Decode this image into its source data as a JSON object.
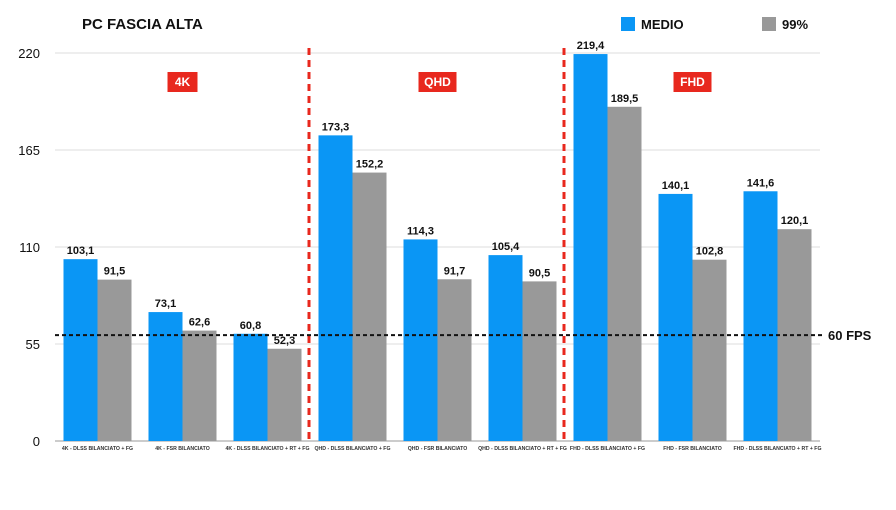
{
  "chart_data": {
    "type": "bar",
    "title": "PC FASCIA ALTA",
    "ylim": [
      0,
      220
    ],
    "yticks": [
      0,
      55,
      110,
      165,
      220
    ],
    "grid": true,
    "legend_placement": "top-right",
    "categories": [
      "4K - DLSS BILANCIATO + FG",
      "4K - FSR BILANCIATO",
      "4K - DLSS BILANCIATO + RT + FG",
      "QHD - DLSS BILANCIATO + FG",
      "QHD - FSR BILANCIATO",
      "QHD - DLSS BILANCIATO + RT + FG",
      "FHD - DLSS BILANCIATO + FG",
      "FHD - FSR BILANCIATO",
      "FHD - DLSS BILANCIATO + RT + FG"
    ],
    "series": [
      {
        "name": "MEDIO",
        "color": "#0a96f5",
        "values": [
          103.1,
          73.1,
          60.8,
          173.3,
          114.3,
          105.4,
          219.4,
          140.1,
          141.6
        ],
        "labels": [
          "103,1",
          "73,1",
          "60,8",
          "173,3",
          "114,3",
          "105,4",
          "219,4",
          "140,1",
          "141,6"
        ]
      },
      {
        "name": "99%",
        "color": "#999999",
        "values": [
          91.5,
          62.6,
          52.3,
          152.2,
          91.7,
          90.5,
          189.5,
          102.8,
          120.1
        ],
        "labels": [
          "91,5",
          "62,6",
          "52,3",
          "152,2",
          "91,7",
          "90,5",
          "189,5",
          "102,8",
          "120,1"
        ]
      }
    ],
    "sections": [
      {
        "label": "4K",
        "categories": [
          0,
          1,
          2
        ]
      },
      {
        "label": "QHD",
        "categories": [
          3,
          4,
          5
        ]
      },
      {
        "label": "FHD",
        "categories": [
          6,
          7,
          8
        ]
      }
    ],
    "section_label_color": "#e8281e",
    "separator_color": "#e8281e",
    "reference_line": {
      "value": 60,
      "label": "60 FPS"
    }
  }
}
